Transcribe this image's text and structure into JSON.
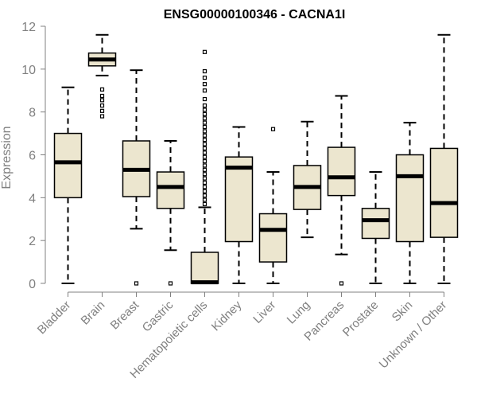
{
  "chart_data": {
    "type": "boxplot",
    "title": "ENSG00000100346 - CACNA1I",
    "xlabel": "",
    "ylabel": "Expression",
    "ylim": [
      0,
      12
    ],
    "yticks": [
      0,
      2,
      4,
      6,
      8,
      10,
      12
    ],
    "grid": false,
    "categories": [
      "Bladder",
      "Brain",
      "Breast",
      "Gastric",
      "Hematopoietic cells",
      "Kidney",
      "Liver",
      "Lung",
      "Pancreas",
      "Prostate",
      "Skin",
      "Unknown / Other"
    ],
    "boxes": [
      {
        "name": "Bladder",
        "min": 0.0,
        "q1": 4.0,
        "median": 5.65,
        "q3": 7.0,
        "max": 9.15,
        "outliers": []
      },
      {
        "name": "Brain",
        "min": 9.7,
        "q1": 10.15,
        "median": 10.45,
        "q3": 10.75,
        "max": 11.6,
        "outliers": [
          9.05,
          8.75,
          8.55,
          8.3,
          8.05,
          7.8
        ]
      },
      {
        "name": "Breast",
        "min": 2.55,
        "q1": 4.05,
        "median": 5.3,
        "q3": 6.65,
        "max": 9.95,
        "outliers": [
          0.0
        ]
      },
      {
        "name": "Gastric",
        "min": 1.55,
        "q1": 3.5,
        "median": 4.5,
        "q3": 5.2,
        "max": 6.65,
        "outliers": [
          0.0
        ]
      },
      {
        "name": "Hematopoietic cells",
        "min": 0.0,
        "q1": 0.0,
        "median": 0.05,
        "q3": 1.45,
        "max": 3.55,
        "outliers": [
          3.7,
          3.9,
          4.1,
          4.3,
          4.5,
          4.7,
          4.9,
          5.1,
          5.3,
          5.5,
          5.7,
          5.9,
          6.1,
          6.3,
          6.5,
          6.7,
          6.9,
          7.1,
          7.3,
          7.5,
          7.7,
          7.9,
          8.1,
          8.3,
          8.6,
          9.0,
          9.3,
          9.6,
          9.9,
          10.8
        ]
      },
      {
        "name": "Kidney",
        "min": 0.0,
        "q1": 1.95,
        "median": 5.4,
        "q3": 5.9,
        "max": 7.3,
        "outliers": []
      },
      {
        "name": "Liver",
        "min": 0.0,
        "q1": 1.0,
        "median": 2.5,
        "q3": 3.25,
        "max": 5.2,
        "outliers": [
          7.2
        ]
      },
      {
        "name": "Lung",
        "min": 2.15,
        "q1": 3.45,
        "median": 4.5,
        "q3": 5.5,
        "max": 7.55,
        "outliers": []
      },
      {
        "name": "Pancreas",
        "min": 1.35,
        "q1": 4.1,
        "median": 4.95,
        "q3": 6.35,
        "max": 8.75,
        "outliers": [
          0.0
        ]
      },
      {
        "name": "Prostate",
        "min": 0.0,
        "q1": 2.1,
        "median": 2.95,
        "q3": 3.5,
        "max": 5.2,
        "outliers": []
      },
      {
        "name": "Skin",
        "min": 0.0,
        "q1": 1.95,
        "median": 5.0,
        "q3": 6.0,
        "max": 7.5,
        "outliers": []
      },
      {
        "name": "Unknown / Other",
        "min": 0.0,
        "q1": 2.15,
        "median": 3.75,
        "q3": 6.3,
        "max": 11.6,
        "outliers": []
      }
    ],
    "colors": {
      "box_fill": "#ece6cf",
      "box_stroke": "#000000",
      "axis": "#808080",
      "label": "#808080"
    }
  }
}
